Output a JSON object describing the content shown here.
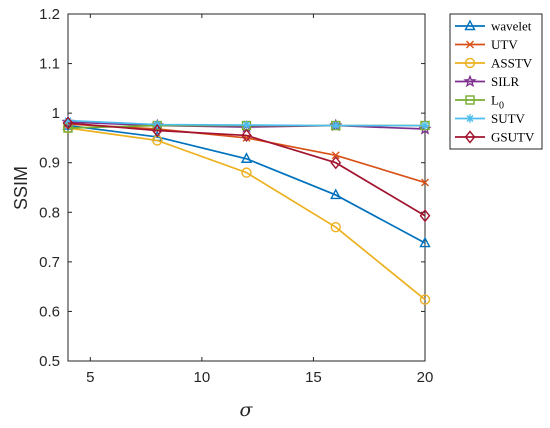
{
  "chart_data": {
    "type": "line",
    "xlabel": "σ",
    "ylabel": "SSIM",
    "xlim": [
      4,
      20
    ],
    "ylim": [
      0.5,
      1.2
    ],
    "xticks": [
      5,
      10,
      15,
      20
    ],
    "yticks": [
      0.5,
      0.6,
      0.7,
      0.8,
      0.9,
      1,
      1.1,
      1.2
    ],
    "x": [
      4,
      8,
      12,
      16,
      20
    ],
    "grid": false,
    "legend_position": "outside-right",
    "series": [
      {
        "name": "wavelet",
        "color": "#0072BD",
        "marker": "triangle",
        "values": [
          0.975,
          0.952,
          0.908,
          0.835,
          0.738
        ]
      },
      {
        "name": "UTV",
        "color": "#D95319",
        "marker": "x",
        "values": [
          0.978,
          0.968,
          0.95,
          0.915,
          0.86
        ]
      },
      {
        "name": "ASSTV",
        "color": "#EDB120",
        "marker": "circle",
        "values": [
          0.97,
          0.945,
          0.88,
          0.77,
          0.624
        ]
      },
      {
        "name": "SILR",
        "color": "#7E2F8E",
        "marker": "star",
        "values": [
          0.982,
          0.975,
          0.972,
          0.975,
          0.968
        ]
      },
      {
        "name": "L",
        "name_sub": "0",
        "color": "#77AC30",
        "marker": "square",
        "values": [
          0.97,
          0.975,
          0.975,
          0.975,
          0.975
        ]
      },
      {
        "name": "SUTV",
        "color": "#4DBEEE",
        "marker": "asterisk",
        "values": [
          0.985,
          0.977,
          0.976,
          0.975,
          0.975
        ]
      },
      {
        "name": "GSUTV",
        "color": "#A2142F",
        "marker": "diamond",
        "values": [
          0.98,
          0.965,
          0.955,
          0.9,
          0.793
        ]
      }
    ]
  }
}
